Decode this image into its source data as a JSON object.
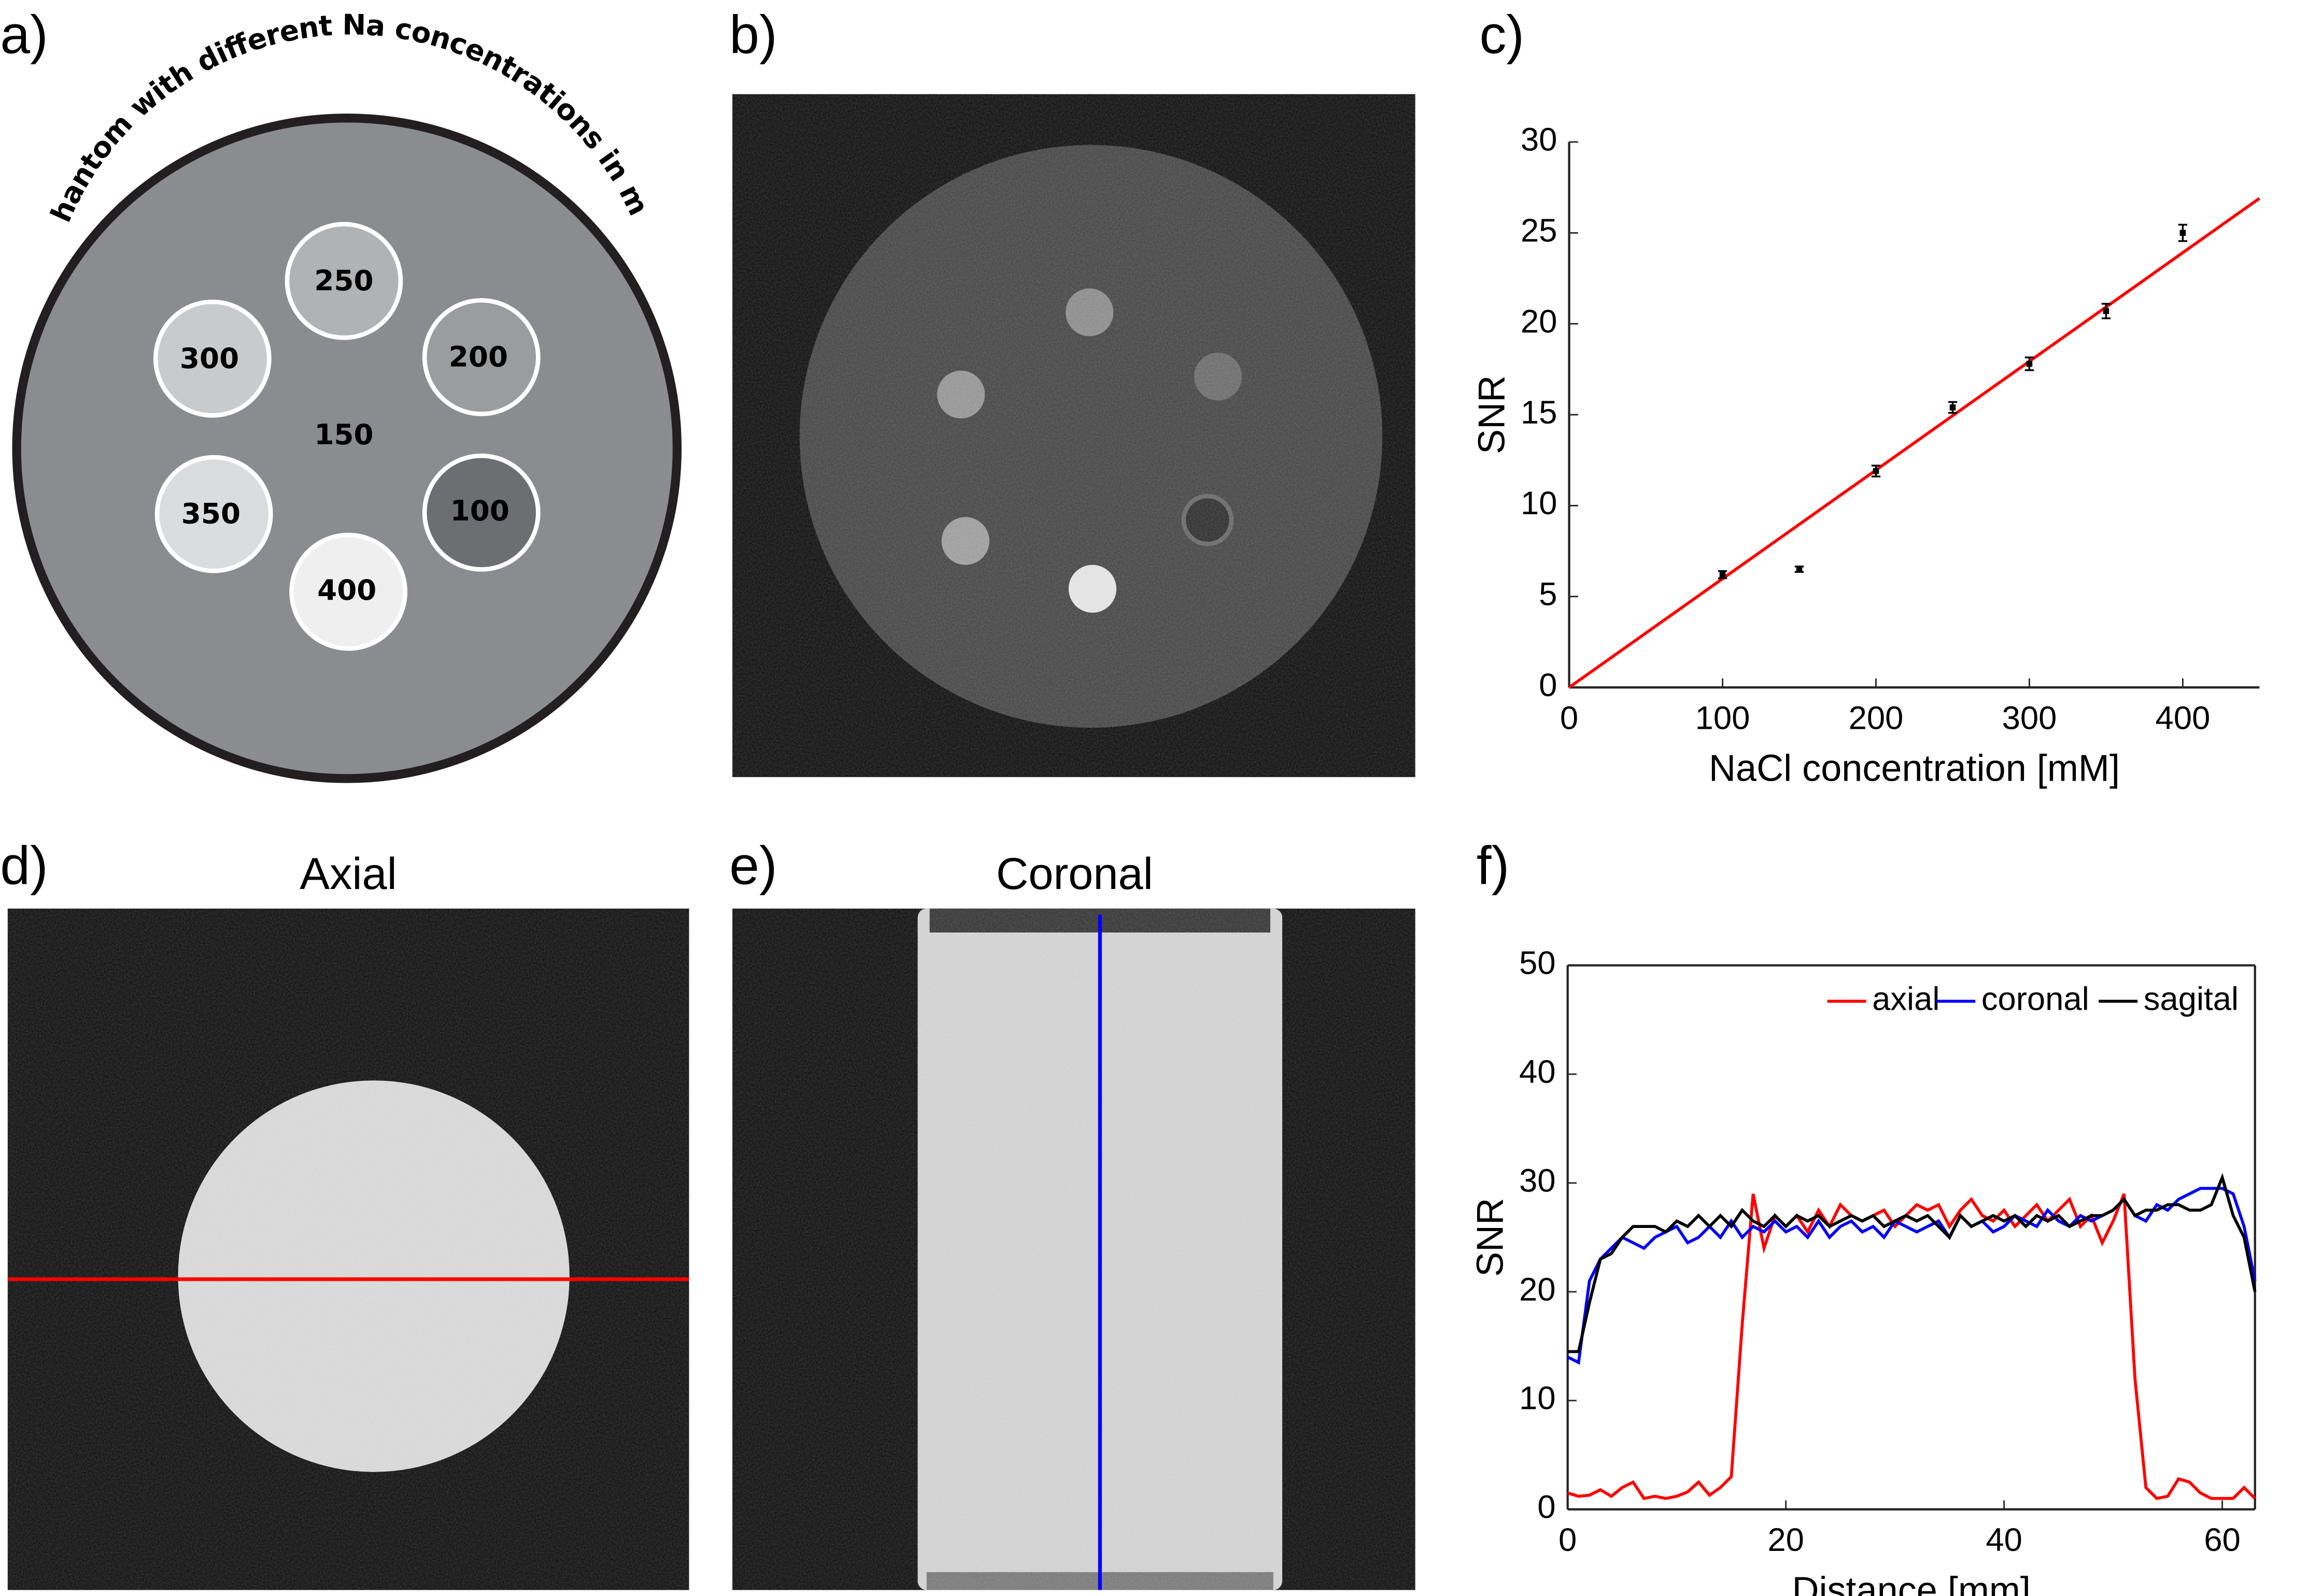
{
  "panels": [
    "a)",
    "b)",
    "c)",
    "d)",
    "e)",
    "f)"
  ],
  "phantom": {
    "title": "Phantom with different Na concentrations in mM",
    "labels": [
      "250",
      "300",
      "200",
      "150",
      "350",
      "100",
      "400"
    ]
  },
  "images": {
    "axial_title": "Axial",
    "coronal_title": "Coronal"
  },
  "chart_data": [
    {
      "type": "scatter",
      "x_label": "NaCl concentration [mM]",
      "y_label": "SNR",
      "x": [
        100,
        150,
        200,
        250,
        300,
        350,
        400
      ],
      "values": [
        6.2,
        6.5,
        11.9,
        15.4,
        17.8,
        20.7,
        25.0
      ],
      "errors": [
        0.2,
        0.15,
        0.3,
        0.3,
        0.35,
        0.4,
        0.45
      ],
      "color": "#000000",
      "fit_line": {
        "x": [
          0,
          450
        ],
        "values": [
          0,
          26.9
        ],
        "color": "#ff0000"
      },
      "xlim": [
        0,
        450
      ],
      "ylim": [
        0,
        30
      ],
      "xticks": [
        0,
        100,
        200,
        300,
        400
      ],
      "yticks": [
        0,
        5,
        10,
        15,
        20,
        25,
        30
      ]
    },
    {
      "type": "line",
      "x_label": "Distance [mm]",
      "y_label": "SNR",
      "x": [
        0,
        1,
        2,
        3,
        4,
        5,
        6,
        7,
        8,
        9,
        10,
        11,
        12,
        13,
        14,
        15,
        16,
        17,
        18,
        19,
        20,
        21,
        22,
        23,
        24,
        25,
        26,
        27,
        28,
        29,
        30,
        31,
        32,
        33,
        34,
        35,
        36,
        37,
        38,
        39,
        40,
        41,
        42,
        43,
        44,
        45,
        46,
        47,
        48,
        49,
        50,
        51,
        52,
        53,
        54,
        55,
        56,
        57,
        58,
        59,
        60,
        61,
        62,
        63
      ],
      "series": [
        {
          "name": "axial",
          "color": "#ff0000",
          "values": [
            1.5,
            1.2,
            1.3,
            1.8,
            1.2,
            2.0,
            2.5,
            1.0,
            1.2,
            1.0,
            1.2,
            1.6,
            2.5,
            1.3,
            2.0,
            3.0,
            17,
            29,
            24,
            27,
            26,
            27,
            25.5,
            27.5,
            26,
            28,
            27,
            26.5,
            27,
            27.5,
            26,
            27,
            28,
            27.5,
            28,
            26,
            27.5,
            28.5,
            27,
            26.5,
            27.5,
            26,
            27,
            28,
            26.5,
            27.5,
            28.5,
            26,
            27,
            24.5,
            26.5,
            29,
            12,
            2,
            1,
            1.2,
            2.8,
            2.5,
            1.5,
            1,
            1,
            1,
            2,
            1
          ]
        },
        {
          "name": "coronal",
          "color": "#0000ff",
          "values": [
            14,
            13.5,
            21,
            23,
            24,
            25,
            24.5,
            24,
            25,
            25.5,
            26,
            24.5,
            25,
            26,
            25,
            26.5,
            25,
            26,
            25.5,
            26.5,
            25.5,
            26,
            25,
            26.5,
            25,
            26,
            26.5,
            25.5,
            26,
            25,
            26.5,
            26,
            25.5,
            26,
            26.5,
            25,
            27,
            26,
            26.5,
            25.5,
            26,
            27,
            26.5,
            26,
            27.5,
            26.5,
            26,
            27,
            26.5,
            27,
            27.5,
            28.5,
            27,
            26.5,
            28,
            27.5,
            28.5,
            29,
            29.5,
            29.5,
            29.5,
            29,
            26,
            21
          ]
        },
        {
          "name": "sagital",
          "color": "#000000",
          "values": [
            14.5,
            14.5,
            19,
            23,
            23.5,
            25,
            26,
            26,
            26,
            25.5,
            26.5,
            26,
            27,
            26,
            27,
            26,
            27.5,
            26.5,
            26,
            27,
            26,
            27,
            26.5,
            27,
            26,
            26.5,
            27,
            26.5,
            27,
            26,
            26.5,
            27,
            26.5,
            27,
            26,
            25,
            27,
            26,
            26.5,
            27,
            26.5,
            27,
            26,
            27,
            26.5,
            27,
            26,
            26.5,
            27,
            27,
            27.5,
            28.5,
            27,
            27.5,
            27.5,
            28,
            28,
            27.5,
            27.5,
            28,
            30.5,
            27,
            25,
            20
          ]
        }
      ],
      "xlim": [
        0,
        63
      ],
      "ylim": [
        0,
        50
      ],
      "xticks": [
        0,
        20,
        40,
        60
      ],
      "yticks": [
        0,
        10,
        20,
        30,
        40,
        50
      ],
      "legend": "upper right"
    }
  ]
}
